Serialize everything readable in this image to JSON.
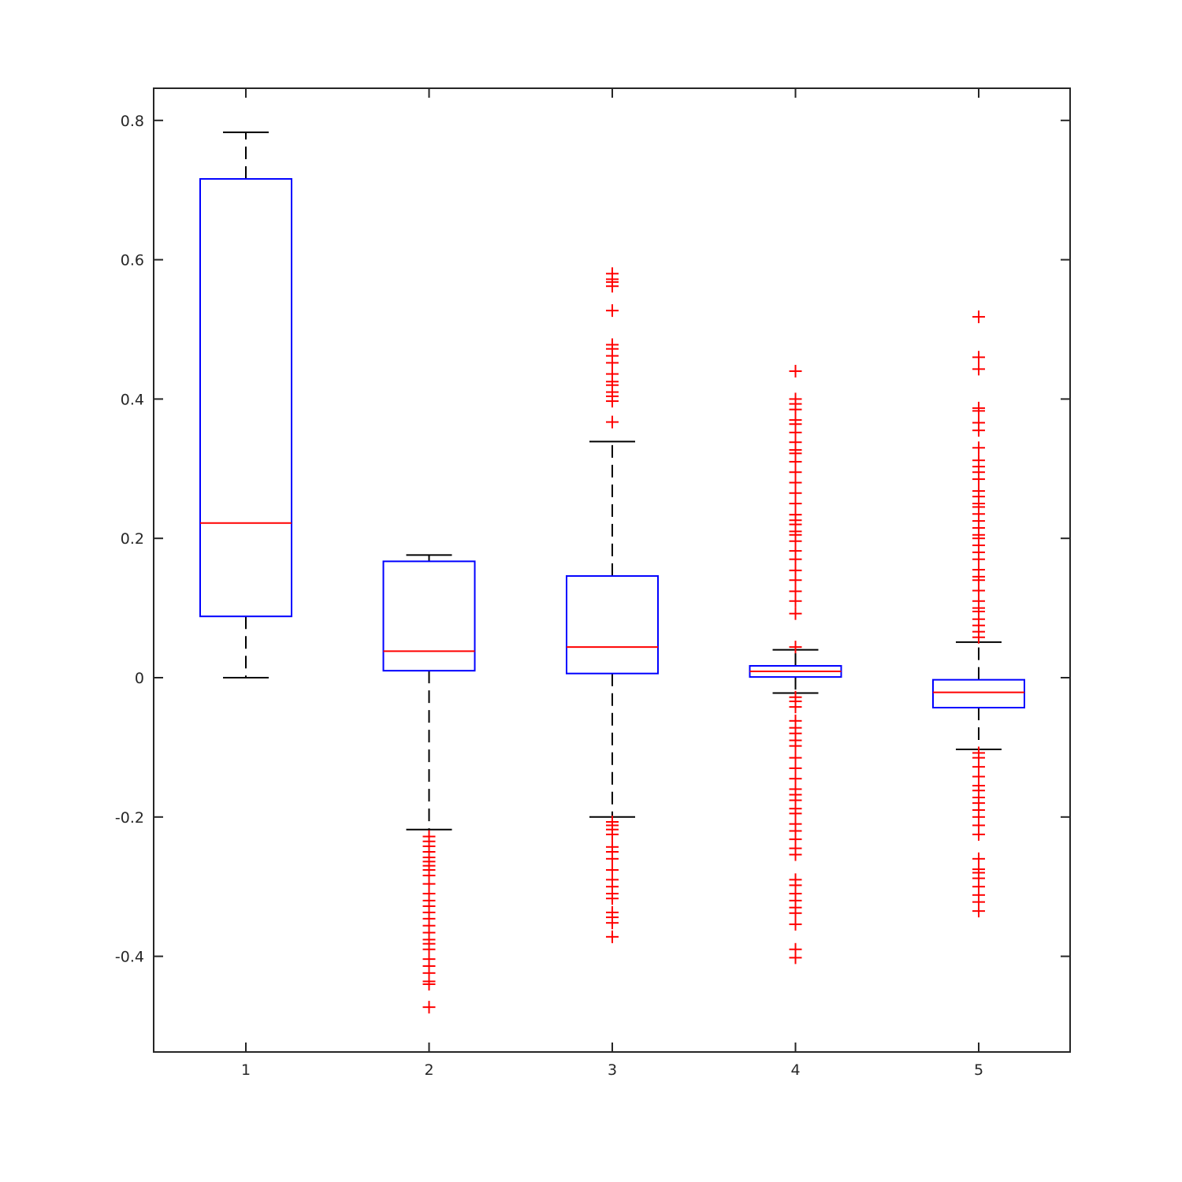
{
  "chart_data": {
    "type": "box",
    "title": "",
    "xlabel": "",
    "ylabel": "",
    "ylim": [
      -0.54,
      0.845
    ],
    "xlim": [
      0.5,
      5.5
    ],
    "yticks": [
      -0.4,
      -0.2,
      0,
      0.2,
      0.4,
      0.6,
      0.8
    ],
    "ytick_labels": [
      "-0.4",
      "-0.2",
      "0",
      "0.2",
      "0.4",
      "0.6",
      "0.8"
    ],
    "categories": [
      "1",
      "2",
      "3",
      "4",
      "5"
    ],
    "grid": false,
    "colors": {
      "box": "#0000ff",
      "median": "#ff0000",
      "whisker": "#000000",
      "outlier": "#ff0000",
      "axis": "#262626"
    },
    "boxes": [
      {
        "label": "1",
        "whisker_low": 0.0,
        "q1": 0.088,
        "median": 0.222,
        "q3": 0.716,
        "whisker_high": 0.783,
        "outliers": []
      },
      {
        "label": "2",
        "whisker_low": -0.218,
        "q1": 0.01,
        "median": 0.038,
        "q3": 0.167,
        "whisker_high": 0.176,
        "outliers": [
          -0.228,
          -0.235,
          -0.242,
          -0.25,
          -0.258,
          -0.264,
          -0.27,
          -0.276,
          -0.284,
          -0.296,
          -0.31,
          -0.32,
          -0.328,
          -0.337,
          -0.346,
          -0.356,
          -0.366,
          -0.376,
          -0.382,
          -0.39,
          -0.404,
          -0.414,
          -0.424,
          -0.436,
          -0.44,
          -0.473
        ]
      },
      {
        "label": "3",
        "whisker_low": -0.2,
        "q1": 0.006,
        "median": 0.044,
        "q3": 0.146,
        "whisker_high": 0.339,
        "outliers": [
          0.367,
          0.397,
          0.404,
          0.41,
          0.42,
          0.425,
          0.436,
          0.452,
          0.462,
          0.472,
          0.478,
          0.527,
          0.562,
          0.568,
          0.572,
          0.58,
          -0.207,
          -0.212,
          -0.218,
          -0.225,
          -0.243,
          -0.25,
          -0.26,
          -0.276,
          -0.29,
          -0.3,
          -0.31,
          -0.317,
          -0.337,
          -0.344,
          -0.352,
          -0.372
        ]
      },
      {
        "label": "4",
        "whisker_low": -0.022,
        "q1": 0.001,
        "median": 0.009,
        "q3": 0.017,
        "whisker_high": 0.04,
        "outliers": [
          0.044,
          0.092,
          0.11,
          0.124,
          0.14,
          0.154,
          0.17,
          0.182,
          0.196,
          0.205,
          0.21,
          0.22,
          0.226,
          0.234,
          0.25,
          0.265,
          0.28,
          0.295,
          0.31,
          0.322,
          0.327,
          0.338,
          0.352,
          0.364,
          0.37,
          0.385,
          0.393,
          0.4,
          0.44,
          -0.028,
          -0.034,
          -0.042,
          -0.062,
          -0.072,
          -0.08,
          -0.09,
          -0.098,
          -0.115,
          -0.13,
          -0.145,
          -0.16,
          -0.168,
          -0.176,
          -0.188,
          -0.195,
          -0.21,
          -0.22,
          -0.232,
          -0.245,
          -0.254,
          -0.29,
          -0.298,
          -0.31,
          -0.32,
          -0.33,
          -0.338,
          -0.354,
          -0.39,
          -0.402
        ]
      },
      {
        "label": "5",
        "whisker_low": -0.103,
        "q1": -0.043,
        "median": -0.021,
        "q3": -0.003,
        "whisker_high": 0.051,
        "outliers": [
          0.058,
          0.066,
          0.075,
          0.084,
          0.095,
          0.1,
          0.11,
          0.125,
          0.14,
          0.145,
          0.155,
          0.17,
          0.18,
          0.19,
          0.2,
          0.205,
          0.215,
          0.225,
          0.235,
          0.245,
          0.25,
          0.26,
          0.268,
          0.285,
          0.295,
          0.303,
          0.312,
          0.33,
          0.355,
          0.366,
          0.383,
          0.387,
          0.443,
          0.46,
          0.518,
          -0.108,
          -0.115,
          -0.128,
          -0.142,
          -0.155,
          -0.162,
          -0.172,
          -0.18,
          -0.19,
          -0.2,
          -0.212,
          -0.225,
          -0.26,
          -0.275,
          -0.28,
          -0.288,
          -0.3,
          -0.312,
          -0.322,
          -0.335
        ]
      }
    ]
  }
}
